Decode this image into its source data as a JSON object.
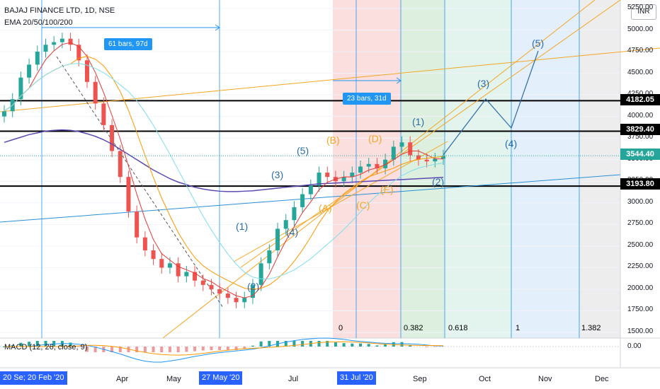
{
  "header": {
    "symbol": "BAJAJ FINANCE LTD, 1D, NSE",
    "indicator": "EMA 20/50/100/200",
    "currency_button": "INR"
  },
  "macd": {
    "label": "MACD (12, 26, close, 9)",
    "zero_label": "0.00"
  },
  "price_axis": {
    "ticks": [
      "5250.00",
      "5000.00",
      "4750.00",
      "4500.00",
      "4250.00",
      "4000.00",
      "3750.00",
      "3500.00",
      "3250.00",
      "3000.00",
      "2750.00",
      "2500.00",
      "2250.00",
      "2000.00",
      "1750.00",
      "1500.00"
    ],
    "labels": [
      {
        "text": "4182.05",
        "color": "#000000"
      },
      {
        "text": "3829.40",
        "color": "#000000"
      },
      {
        "text": "3544.40",
        "color": "#26a69a"
      },
      {
        "text": "3193.80",
        "color": "#000000"
      }
    ]
  },
  "time_axis": {
    "ticks": [
      "Apr",
      "May",
      "Jul",
      "Sep",
      "Oct",
      "Nov",
      "Dec"
    ],
    "highlights": [
      "20 Se; 20 Feb '20",
      "27 May '20",
      "31 Jul '20"
    ]
  },
  "ranges": {
    "first": "61 bars, 97d",
    "second": "23 bars, 31d"
  },
  "fibonacci": {
    "levels": [
      {
        "text": "0",
        "color": "#888888"
      },
      {
        "text": "0.382",
        "color": "#e53935"
      },
      {
        "text": "0.618",
        "color": "#43a047"
      },
      {
        "text": "1",
        "color": "#00897b"
      },
      {
        "text": "1.382",
        "color": "#42a5f5"
      }
    ]
  },
  "waves": {
    "blue": [
      "(1)",
      "(2)",
      "(3)",
      "(4)",
      "(5)",
      "(1)",
      "(2)",
      "(3)",
      "(4)",
      "(5)"
    ],
    "orange": [
      "(A)",
      "(B)",
      "(C)",
      "(D)",
      "(E)"
    ]
  },
  "chart_data": {
    "type": "candlestick",
    "title": "BAJAJ FINANCE LTD, 1D, NSE",
    "ylim": [
      1500,
      5250
    ],
    "horizontal_levels": [
      4182.05,
      3829.4,
      3193.8
    ],
    "last_price": 3544.4,
    "x_ticks": [
      "Apr",
      "May",
      "Jul",
      "Sep",
      "Oct",
      "Nov",
      "Dec"
    ],
    "series": [
      {
        "name": "Close",
        "values": [
          4060,
          4200,
          4450,
          4600,
          4750,
          4830,
          4860,
          4900,
          4830,
          4650,
          4400,
          4150,
          3900,
          3600,
          3300,
          2900,
          2600,
          2450,
          2350,
          2250,
          2300,
          2150,
          2200,
          2100,
          2050,
          2000,
          1950,
          1900,
          1850,
          1900,
          2050,
          2300,
          2450,
          2700,
          2800,
          2950,
          3100,
          3200,
          3350,
          3300,
          3250,
          3300,
          3350,
          3420,
          3450,
          3400,
          3500,
          3650,
          3700,
          3550,
          3500,
          3480,
          3510,
          3544
        ]
      },
      {
        "name": "EMA 200",
        "values": [
          3700,
          3730,
          3760,
          3790,
          3810,
          3830,
          3840,
          3845,
          3840,
          3825,
          3800,
          3770,
          3730,
          3680,
          3620,
          3560,
          3500,
          3440,
          3380,
          3330,
          3280,
          3240,
          3210,
          3180,
          3160,
          3145,
          3135,
          3130,
          3130,
          3135,
          3140,
          3150,
          3160,
          3170,
          3180,
          3190,
          3200,
          3210,
          3220,
          3225,
          3230,
          3235,
          3240,
          3245,
          3250,
          3255,
          3260,
          3265,
          3270,
          3275,
          3280,
          3285,
          3290,
          3295
        ]
      }
    ]
  }
}
